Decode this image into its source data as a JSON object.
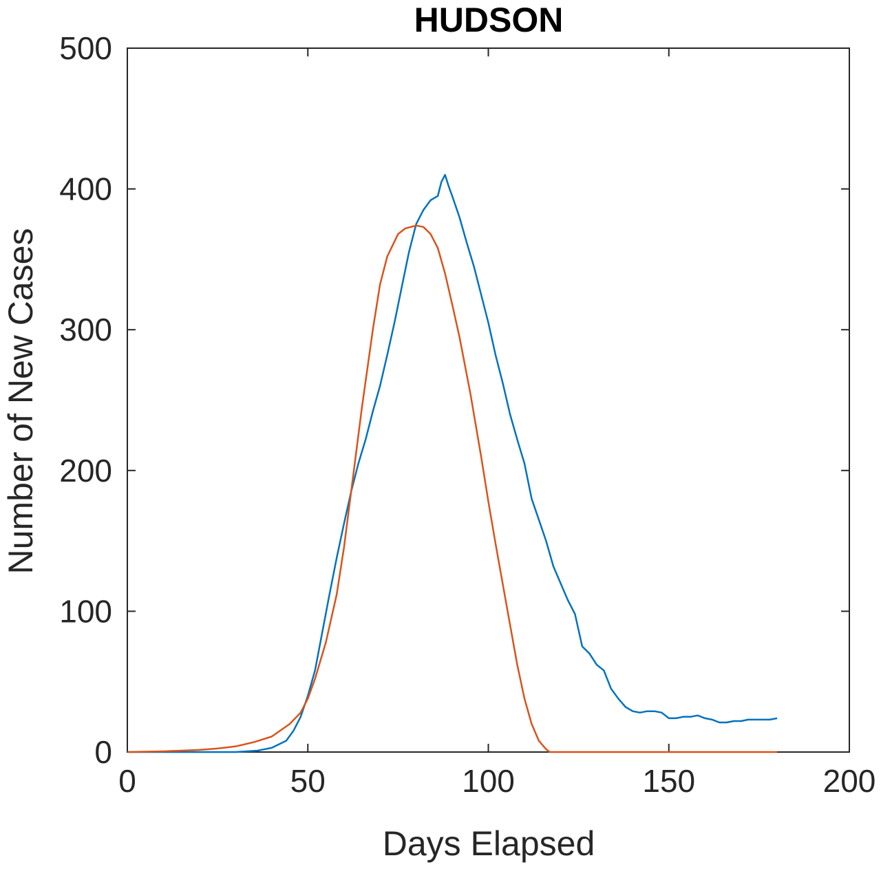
{
  "chart_data": {
    "type": "line",
    "title": "HUDSON",
    "xlabel": "Days Elapsed",
    "ylabel": "Number of New Cases",
    "xlim": [
      0,
      200
    ],
    "ylim": [
      0,
      500
    ],
    "xticks": [
      0,
      50,
      100,
      150,
      200
    ],
    "yticks": [
      0,
      100,
      200,
      300,
      400,
      500
    ],
    "grid": false,
    "box": true,
    "series": [
      {
        "color": "#0072BD",
        "x": [
          0,
          10,
          20,
          30,
          36,
          40,
          44,
          46,
          48,
          50,
          52,
          54,
          56,
          58,
          60,
          62,
          64,
          66,
          68,
          70,
          72,
          74,
          76,
          78,
          80,
          82,
          84,
          86,
          87,
          88,
          89,
          90,
          92,
          94,
          96,
          98,
          100,
          102,
          104,
          106,
          108,
          110,
          112,
          114,
          116,
          118,
          120,
          122,
          124,
          126,
          128,
          130,
          132,
          134,
          136,
          138,
          140,
          142,
          144,
          146,
          148,
          150,
          152,
          154,
          156,
          158,
          160,
          162,
          164,
          166,
          168,
          170,
          172,
          174,
          176,
          178,
          180
        ],
        "y": [
          0,
          0,
          0,
          0,
          1,
          3,
          8,
          15,
          25,
          40,
          58,
          85,
          112,
          138,
          162,
          185,
          205,
          222,
          242,
          260,
          282,
          305,
          330,
          355,
          375,
          385,
          392,
          395,
          405,
          410,
          402,
          395,
          380,
          362,
          345,
          325,
          305,
          282,
          262,
          240,
          222,
          205,
          180,
          165,
          150,
          132,
          120,
          108,
          98,
          75,
          70,
          62,
          58,
          45,
          38,
          32,
          29,
          28,
          29,
          29,
          28,
          24,
          24,
          25,
          25,
          26,
          24,
          23,
          21,
          21,
          22,
          22,
          23,
          23,
          23,
          23,
          24
        ]
      },
      {
        "color": "#D95319",
        "x": [
          0,
          10,
          20,
          25,
          30,
          35,
          40,
          45,
          48,
          50,
          52,
          55,
          58,
          60,
          62,
          65,
          68,
          70,
          72,
          75,
          77,
          80,
          82,
          84,
          86,
          88,
          90,
          92,
          95,
          98,
          100,
          102,
          105,
          108,
          110,
          112,
          114,
          116,
          117,
          120,
          130,
          140,
          150,
          160,
          170,
          180
        ],
        "y": [
          0,
          0.5,
          1.5,
          2.5,
          4,
          7,
          11,
          20,
          28,
          38,
          52,
          78,
          112,
          145,
          185,
          245,
          300,
          332,
          352,
          368,
          372,
          374,
          373,
          368,
          358,
          340,
          318,
          295,
          255,
          210,
          178,
          148,
          105,
          62,
          38,
          20,
          8,
          2,
          0,
          0,
          0,
          0,
          0,
          0,
          0,
          0
        ]
      }
    ]
  }
}
